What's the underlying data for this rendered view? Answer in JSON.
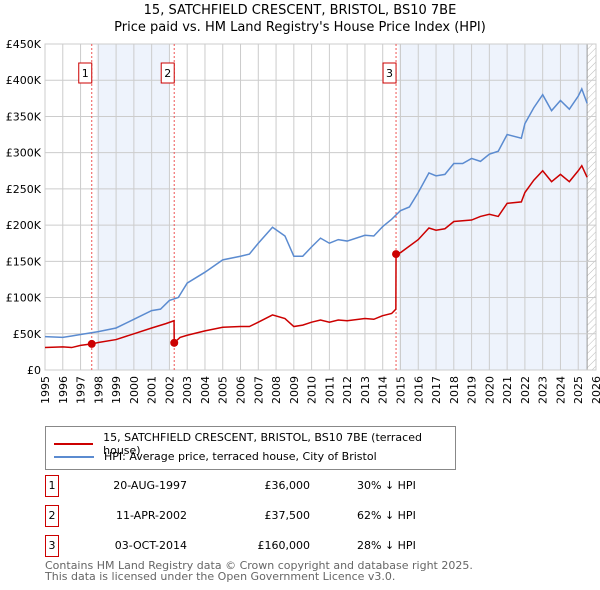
{
  "title": "15, SATCHFIELD CRESCENT, BRISTOL, BS10 7BE",
  "subtitle": "Price paid vs. HM Land Registry's House Price Index (HPI)",
  "chart_data": {
    "type": "line",
    "title": "15, SATCHFIELD CRESCENT, BRISTOL, BS10 7BE — Price paid vs. HM Land Registry's House Price Index (HPI)",
    "xlim": [
      1995,
      2026
    ],
    "ylim": [
      0,
      450000
    ],
    "x_ticks": [
      "1995",
      "1996",
      "1997",
      "1998",
      "1999",
      "2000",
      "2001",
      "2002",
      "2003",
      "2004",
      "2005",
      "2006",
      "2007",
      "2008",
      "2009",
      "2010",
      "2011",
      "2012",
      "2013",
      "2014",
      "2015",
      "2016",
      "2017",
      "2018",
      "2019",
      "2020",
      "2021",
      "2022",
      "2023",
      "2024",
      "2025",
      "2026"
    ],
    "y_ticks": [
      {
        "v": 0,
        "l": "£0"
      },
      {
        "v": 50000,
        "l": "£50K"
      },
      {
        "v": 100000,
        "l": "£100K"
      },
      {
        "v": 150000,
        "l": "£150K"
      },
      {
        "v": 200000,
        "l": "£200K"
      },
      {
        "v": 250000,
        "l": "£250K"
      },
      {
        "v": 300000,
        "l": "£300K"
      },
      {
        "v": 350000,
        "l": "£350K"
      },
      {
        "v": 400000,
        "l": "£400K"
      },
      {
        "v": 450000,
        "l": "£450K"
      }
    ],
    "series": [
      {
        "name": "15, SATCHFIELD CRESCENT, BRISTOL, BS10 7BE (terraced house)",
        "color": "#cc0000",
        "x": [
          1995,
          1996,
          1996.5,
          1997,
          1997.63,
          1998,
          1999,
          2000,
          2001,
          2001.8,
          2002.26,
          2002.27,
          2002.6,
          2003,
          2004,
          2005,
          2006,
          2006.5,
          2007,
          2007.8,
          2008.5,
          2009,
          2009.5,
          2010,
          2010.5,
          2011,
          2011.5,
          2012,
          2013,
          2013.5,
          2014,
          2014.5,
          2014.74,
          2014.75,
          2015,
          2016,
          2016.6,
          2017,
          2017.5,
          2018,
          2019,
          2019.5,
          2020,
          2020.5,
          2021,
          2021.8,
          2022,
          2022.5,
          2023,
          2023.5,
          2024,
          2024.5,
          2025,
          2025.2,
          2025.5
        ],
        "y": [
          31000,
          32000,
          31000,
          34000,
          36000,
          38000,
          42000,
          50000,
          58000,
          64000,
          68000,
          37500,
          45000,
          48000,
          54000,
          59000,
          60000,
          60000,
          66000,
          76000,
          71000,
          60000,
          62000,
          66000,
          69000,
          66000,
          69000,
          68000,
          71000,
          70000,
          75000,
          78000,
          84000,
          160000,
          162000,
          180000,
          196000,
          193000,
          195000,
          205000,
          207000,
          212000,
          215000,
          212000,
          230000,
          232000,
          245000,
          262000,
          275000,
          260000,
          270000,
          260000,
          275000,
          282000,
          266000
        ]
      },
      {
        "name": "HPI: Average price, terraced house, City of Bristol",
        "color": "#5b8bd0",
        "x": [
          1995,
          1996,
          1996.5,
          1997,
          1998,
          1999,
          2000,
          2001,
          2001.5,
          2002,
          2002.5,
          2003,
          2004,
          2005,
          2006,
          2006.5,
          2007,
          2007.8,
          2008.5,
          2009,
          2009.5,
          2010,
          2010.5,
          2011,
          2011.5,
          2012,
          2013,
          2013.5,
          2014,
          2014.5,
          2015,
          2015.5,
          2016,
          2016.6,
          2017,
          2017.5,
          2018,
          2018.5,
          2019,
          2019.5,
          2020,
          2020.5,
          2021,
          2021.8,
          2022,
          2022.5,
          2023,
          2023.5,
          2024,
          2024.5,
          2025,
          2025.2,
          2025.5
        ],
        "y": [
          46000,
          45000,
          47000,
          49000,
          53000,
          58000,
          70000,
          82000,
          84000,
          96000,
          100000,
          120000,
          135000,
          152000,
          157000,
          160000,
          175000,
          197000,
          185000,
          157000,
          157000,
          170000,
          182000,
          175000,
          180000,
          178000,
          186000,
          185000,
          198000,
          208000,
          220000,
          225000,
          245000,
          272000,
          268000,
          270000,
          285000,
          285000,
          292000,
          288000,
          298000,
          302000,
          325000,
          320000,
          340000,
          362000,
          380000,
          358000,
          372000,
          360000,
          378000,
          388000,
          368000
        ]
      }
    ],
    "sales": [
      {
        "label": "1",
        "x": 1997.63,
        "y": 36000
      },
      {
        "label": "2",
        "x": 2002.27,
        "y": 37500
      },
      {
        "label": "3",
        "x": 2014.75,
        "y": 160000
      }
    ],
    "shaded_ranges": [
      [
        1997.9,
        2002.0
      ],
      [
        2014.9,
        2025.5
      ]
    ],
    "hatched_from": 2025.5,
    "legend_position": "below"
  },
  "legend": {
    "red": "15, SATCHFIELD CRESCENT, BRISTOL, BS10 7BE (terraced house)",
    "blue": "HPI: Average price, terraced house, City of Bristol"
  },
  "transactions": [
    {
      "n": "1",
      "date": "20-AUG-1997",
      "price": "£36,000",
      "hpi": "30% ↓ HPI"
    },
    {
      "n": "2",
      "date": "11-APR-2002",
      "price": "£37,500",
      "hpi": "62% ↓ HPI"
    },
    {
      "n": "3",
      "date": "03-OCT-2014",
      "price": "£160,000",
      "hpi": "28% ↓ HPI"
    }
  ],
  "footer": [
    "Contains HM Land Registry data © Crown copyright and database right 2025.",
    "This data is licensed under the Open Government Licence v3.0."
  ]
}
